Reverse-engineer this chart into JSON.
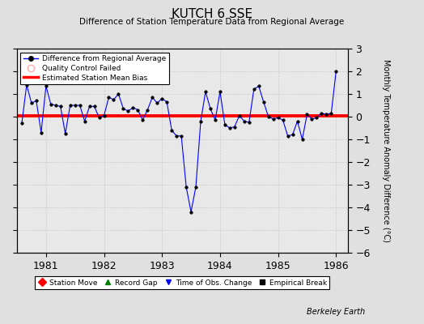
{
  "title": "KUTCH 6 SSE",
  "subtitle": "Difference of Station Temperature Data from Regional Average",
  "ylabel": "Monthly Temperature Anomaly Difference (°C)",
  "watermark": "Berkeley Earth",
  "background_color": "#e0e0e0",
  "plot_bg_color": "#e8e8e8",
  "ylim": [
    -6,
    3
  ],
  "xlim": [
    1980.5,
    1986.2
  ],
  "yticks": [
    -6,
    -5,
    -4,
    -3,
    -2,
    -1,
    0,
    1,
    2,
    3
  ],
  "xticks": [
    1981,
    1982,
    1983,
    1984,
    1985,
    1986
  ],
  "bias_value": 0.05,
  "data_x": [
    1980.583,
    1980.667,
    1980.75,
    1980.833,
    1980.917,
    1981.0,
    1981.083,
    1981.167,
    1981.25,
    1981.333,
    1981.417,
    1981.5,
    1981.583,
    1981.667,
    1981.75,
    1981.833,
    1981.917,
    1982.0,
    1982.083,
    1982.167,
    1982.25,
    1982.333,
    1982.417,
    1982.5,
    1982.583,
    1982.667,
    1982.75,
    1982.833,
    1982.917,
    1983.0,
    1983.083,
    1983.167,
    1983.25,
    1983.333,
    1983.417,
    1983.5,
    1983.583,
    1983.667,
    1983.75,
    1983.833,
    1983.917,
    1984.0,
    1984.083,
    1984.167,
    1984.25,
    1984.333,
    1984.417,
    1984.5,
    1984.583,
    1984.667,
    1984.75,
    1984.833,
    1984.917,
    1985.0,
    1985.083,
    1985.167,
    1985.25,
    1985.333,
    1985.417,
    1985.5,
    1985.583,
    1985.667,
    1985.75,
    1985.833,
    1985.917,
    1986.0
  ],
  "data_y": [
    -0.3,
    1.4,
    0.6,
    0.7,
    -0.7,
    1.35,
    0.55,
    0.5,
    0.45,
    -0.75,
    0.5,
    0.5,
    0.5,
    -0.2,
    0.45,
    0.45,
    -0.05,
    0.05,
    0.85,
    0.75,
    1.0,
    0.35,
    0.25,
    0.4,
    0.3,
    -0.15,
    0.3,
    0.85,
    0.6,
    0.8,
    0.65,
    -0.6,
    -0.85,
    -0.85,
    -3.1,
    -4.2,
    -3.1,
    -0.2,
    1.1,
    0.35,
    -0.15,
    1.1,
    -0.35,
    -0.5,
    -0.45,
    0.05,
    -0.2,
    -0.25,
    1.2,
    1.35,
    0.65,
    0.0,
    -0.1,
    -0.05,
    -0.15,
    -0.85,
    -0.8,
    -0.2,
    -1.0,
    0.1,
    -0.1,
    -0.05,
    0.15,
    0.1,
    0.15,
    2.0
  ]
}
